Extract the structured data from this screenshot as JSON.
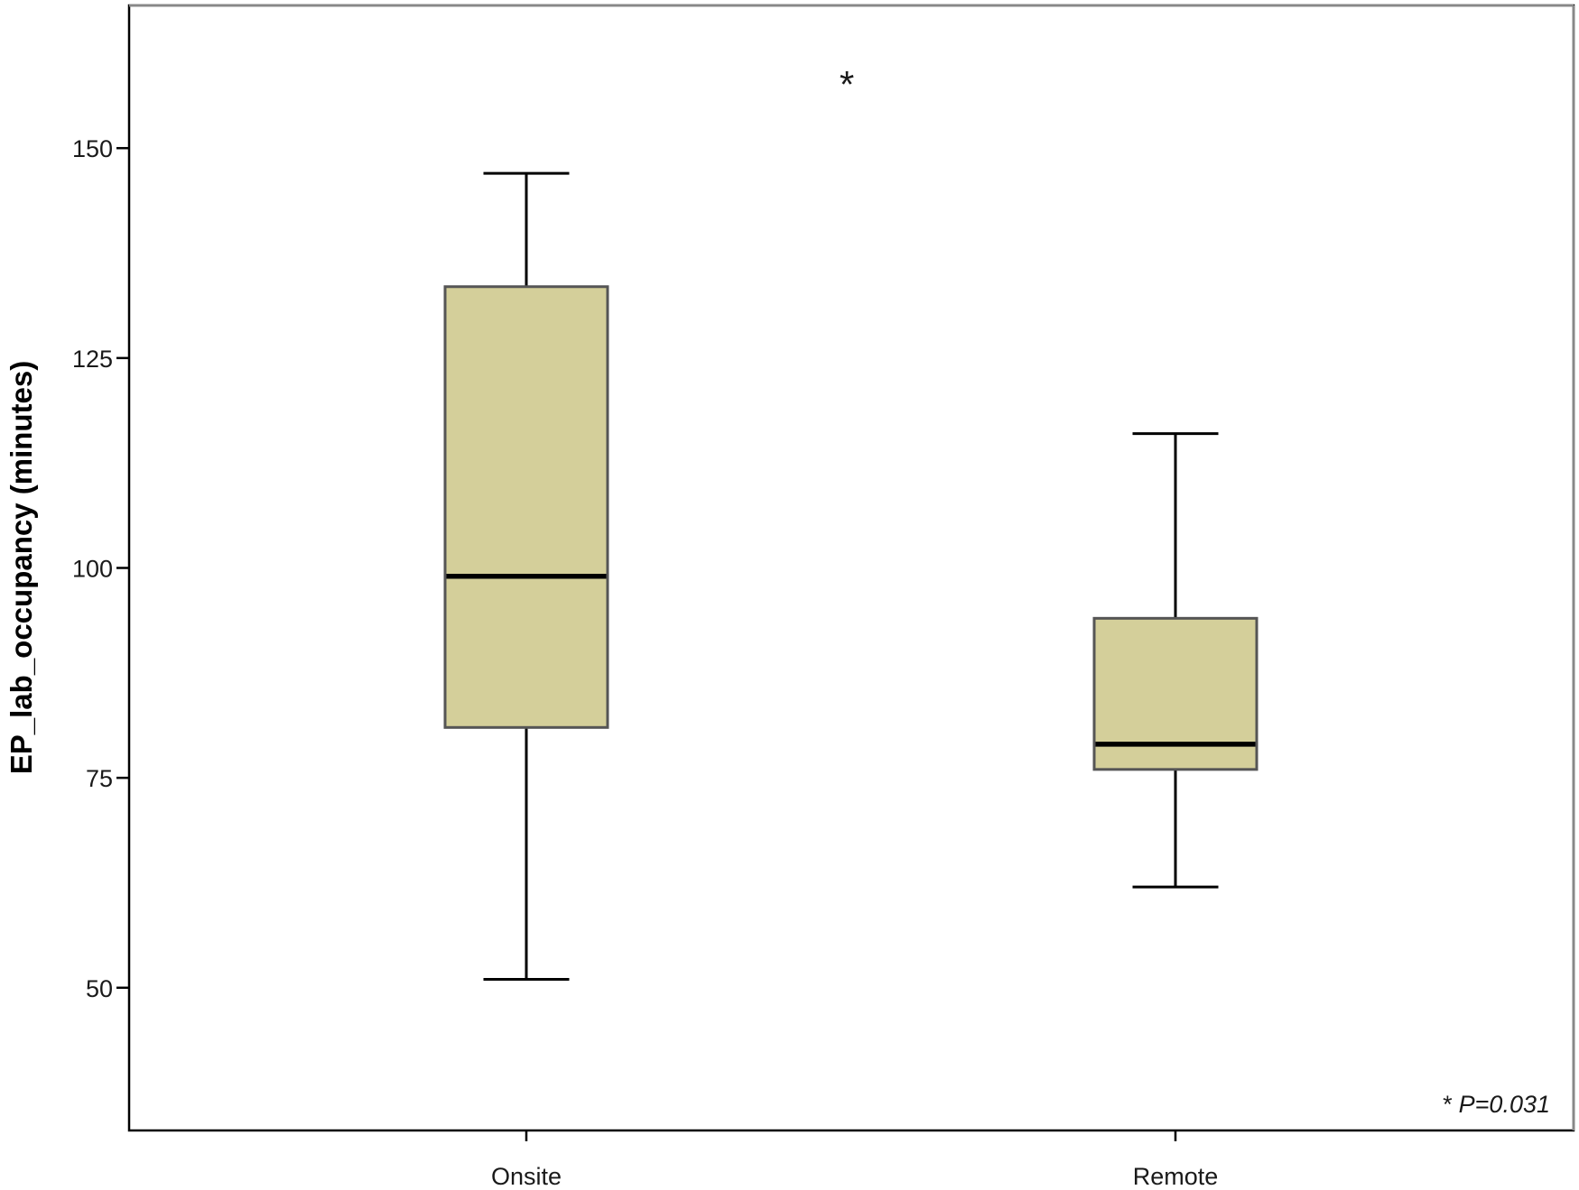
{
  "chart_data": {
    "type": "box",
    "title": "",
    "xlabel": "",
    "ylabel": "EP_lab_occupancy (minutes)",
    "ylim": [
      33,
      167
    ],
    "yticks": [
      50,
      75,
      100,
      125,
      150
    ],
    "ytick_labels": [
      "50",
      "75",
      "100",
      "125",
      "150"
    ],
    "categories": [
      "Onsite",
      "Remote"
    ],
    "boxes": [
      {
        "category": "Onsite",
        "min": 51,
        "q1": 81,
        "median": 99,
        "q3": 133.5,
        "max": 147
      },
      {
        "category": "Remote",
        "min": 62,
        "q1": 76,
        "median": 79,
        "q3": 94,
        "max": 116
      }
    ],
    "outliers": [],
    "significance_marker": "*",
    "annotation": {
      "star": "*",
      "text": "P=0.031"
    },
    "box_color": "#d4cf9a",
    "grid": false
  }
}
